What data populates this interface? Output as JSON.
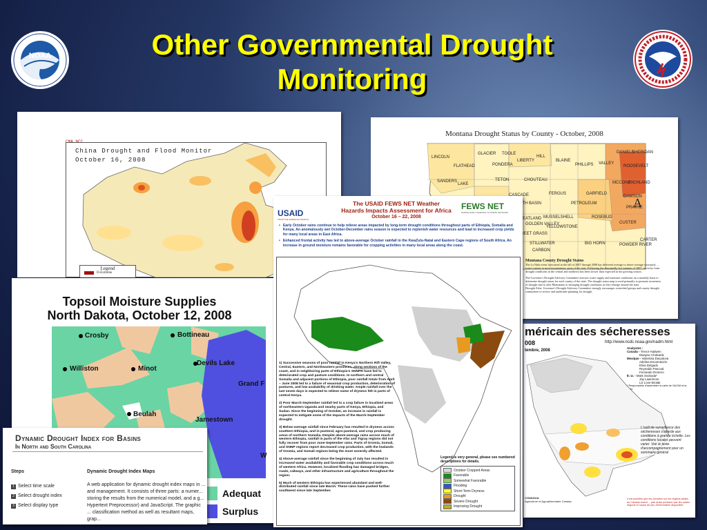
{
  "slide": {
    "title_line1": "Other Governmental Drought",
    "title_line2": "Monitoring",
    "colors": {
      "title": "#ffff00",
      "background": "#1c2b5a"
    }
  },
  "logos": {
    "noaa": {
      "text": "NOAA",
      "ring_text": "NATIONAL OCEANIC AND ATMOSPHERIC ADMINISTRATION · U.S. DEPARTMENT OF COMMERCE"
    },
    "nws": {
      "ring_text": "NATIONAL WEATHER SERVICE"
    }
  },
  "china": {
    "header": "CMA NCC",
    "title1": "China Drought and Flood Monitor",
    "title2": "October 16, 2008",
    "legend_title": "Legend",
    "legend_item": "D-Extreme"
  },
  "montana": {
    "title": "Montana Drought Status by County - October, 2008",
    "counties": [
      "LINCOLN",
      "FLATHEAD",
      "GLACIER",
      "TOOLE",
      "LIBERTY",
      "HILL",
      "BLAINE",
      "PHILLIPS",
      "VALLEY",
      "DANIELS",
      "SHERIDAN",
      "ROOSEVELT",
      "PONDERA",
      "SANDERS",
      "LAKE",
      "TETON",
      "CHOUTEAU",
      "MCCONE",
      "RICHLAND",
      "CASCADE",
      "FERGUS",
      "GARFIELD",
      "DAWSON",
      "JUDITH BASIN",
      "PETROLEUM",
      "PRAIRIE",
      "MUSSELSHELL",
      "ROSEBUD",
      "WHEATLAND",
      "GOLDEN VALLEY",
      "CUSTER",
      "SWEET GRASS",
      "YELLOWSTONE",
      "BIG HORN",
      "POWDER RIVER",
      "CARTER",
      "STILLWATER",
      "CARBON"
    ],
    "marker": "A",
    "subheading": "Montana County Drought Status",
    "body1": "The La Niña event forecasted in the fall of 2007 through 2008 has delivered average to above average snowpack ... water content to most mountainous areas of the state. Following the abnormally hot summer of 2007, recovery from drought conditions in the central and northeast has been slower than expected in the growing season.",
    "body2": "The Governor's Drought Advisory Committee assesses water supply and moisture conditions on a monthly basis to determine drought status for each county of the state. The drought status map is used primarily to promote awareness of drought and to alert Montanans to emerging drought conditions as they emerge around the state.",
    "body3": "Drought Alert: Governor's Drought Advisory Committee strongly encourages watershed groups and county drought committees to review and undertake planning for drought."
  },
  "fews": {
    "title1": "The USAID FEWS NET Weather",
    "title2": "Hazards Impacts Assessment for Africa",
    "dates": "October 16 – 22, 2008",
    "usaid": "USAID",
    "usaid_sub": "FROM THE AMERICAN PEOPLE",
    "fewsnet": "FEWS NET",
    "fewsnet_sub": "FAMINE EARLY WARNING SYSTEMS NETWORK",
    "bullet1": "Early October rains continue to help relieve areas impacted by long-term drought conditions throughout parts of Ethiopia, Somalia and Kenya. An anomalously wet October-December rains season is expected to replenish water resources and lead to increased crop yields for many local areas in East Africa.",
    "bullet2": "Enhanced frontal activity has led to above-average October rainfall in the KwaZulu-Natal and Eastern Cape regions of South Africa. An increase in ground moisture remains favorable for cropping activities in many local areas along the coast.",
    "items": [
      "1) Successive seasons of poor rainfall in Kenya's Northern Rift Valley, Central, Eastern, and Northeastern provinces, along sections of the coast, and in neighboring parts of Ethiopia's SNNPR have led to deteriorated crop and pasture conditions. In northern and central Somalia and adjacent portions of Ethiopia, poor rainfall totals from April – June 2008 led to a failure of seasonal crop production, deterioration of pastures, and low availability of drinking water. Ample rainfall over the last seven days is expected to relieve some of dryness felt in parts of central Kenya.",
      "2) Poor March-September rainfall led to a crop failure in localized areas of northeastern Uganda and nearby parts of Kenya, Ethiopia, and Sudan. Since the beginning of October, an increase in rainfall is expected to mitigate some of the impacts of the March-September drought.",
      "3) Below-average rainfall since February has resulted in dryness across southern Ethiopia, and in pastoral, agro-pastoral, and crop producing areas of northern Somalia. Despite above-average rains across much of western Ethiopia, rainfall in parts of the Afar and Tigray regions did not fully recover from poor June-September rains. Parts of Oromia, Somali, and SNNP regions report decreased crop production, with the lowlands of Oromia, and Somali regions being the most severely affected.",
      "4) Above-average rainfall since the beginning of July has resulted in increased water availability and favorable crop conditions across much of western Africa. However, localized flooding has damaged bridges, roads, railways, and other infrastructure and agriculture throughout the region.",
      "5) Much of western Ethiopia has experienced abundant and well-distributed rainfall since late March. These rains have pushed further southwest since late September."
    ],
    "legend_note": "Legend is very general, please see numbered descriptions for details.",
    "legend_items": [
      "October Cropped Areas",
      "Favorable",
      "Somewhat Favorable",
      "Flooding",
      "Short-Term Dryness",
      "Drought",
      "Severe Drought",
      "Improving Drought"
    ],
    "legend_colors": [
      "#d8d8d8",
      "#1a8a1a",
      "#8fd060",
      "#2a5cc8",
      "#ffff30",
      "#e89a20",
      "#8a4a10",
      "#b8b020"
    ]
  },
  "nd": {
    "title1": "Topsoil Moisture Supplies",
    "title2": "North Dakota, October 12, 2008",
    "cities": [
      "Crosby",
      "Bottineau",
      "Williston",
      "Minot",
      "Devils Lake",
      "Grand F",
      "Beulah",
      "Jamestown",
      "W"
    ],
    "legend": [
      "Adequat",
      "Surplus"
    ],
    "colors": {
      "short": "#6ad4a4",
      "adequate": "#f0c8a0",
      "surplus": "#5050e0"
    }
  },
  "ddi": {
    "title1": "Dynamic Drought Index for Basins",
    "title2": "In North and South Carolina",
    "steps_heading": "Steps",
    "maps_heading": "Dynamic Drought Index Maps",
    "steps": [
      "Select time scale",
      "Select drought index",
      "Select display type"
    ],
    "body": "A web application for dynamic drought index maps in ... and management. It consists of three parts: a numer... storing the results from the numerical model, and a g... Hypertext Preprocessor) and JavaScript. The graphic ... classification method as well as resultant maps, grap..."
  },
  "namer": {
    "title": "méricain des sécheresses",
    "year": "008",
    "url": "http://www.ncdc.noaa.gov/nadm.html",
    "month": "tembre, 2008",
    "analysts_label": "Analystes :",
    "canada_label": "Canada -",
    "canada": [
      "Trevor Hadwen",
      "Dwayne Chobanik"
    ],
    "mexico_label": "Mexique -",
    "mexico": [
      "Valentina Davydova",
      "Adelina Encarnación",
      "Elvia Delgado",
      "Reynaldo Pascual",
      "Fernando Romero"
    ],
    "us_label": "É.-U. -",
    "us": [
      "Mark Svoboda*",
      "Jay Lawrimore",
      "Liz Love-Brotak"
    ],
    "note": "* Responsable d'assembler la carte de l'ALDM et la carte",
    "side_note": "L'outil de surveillance des sécheresses s'attarde aux conditions à grande échelle. Les conditions locales peuvent varier. Voir le texte d'accompagnement pour un sommaire général",
    "footer_left": "CONAGUA",
    "footer_left2": "Agriculture et Agroalimentaire Canada",
    "footer_note": "Il est possible que les données sur les régions arides au Canada soient ... pas aussi précises que les autres régions et cause de peu d'information disponible."
  }
}
